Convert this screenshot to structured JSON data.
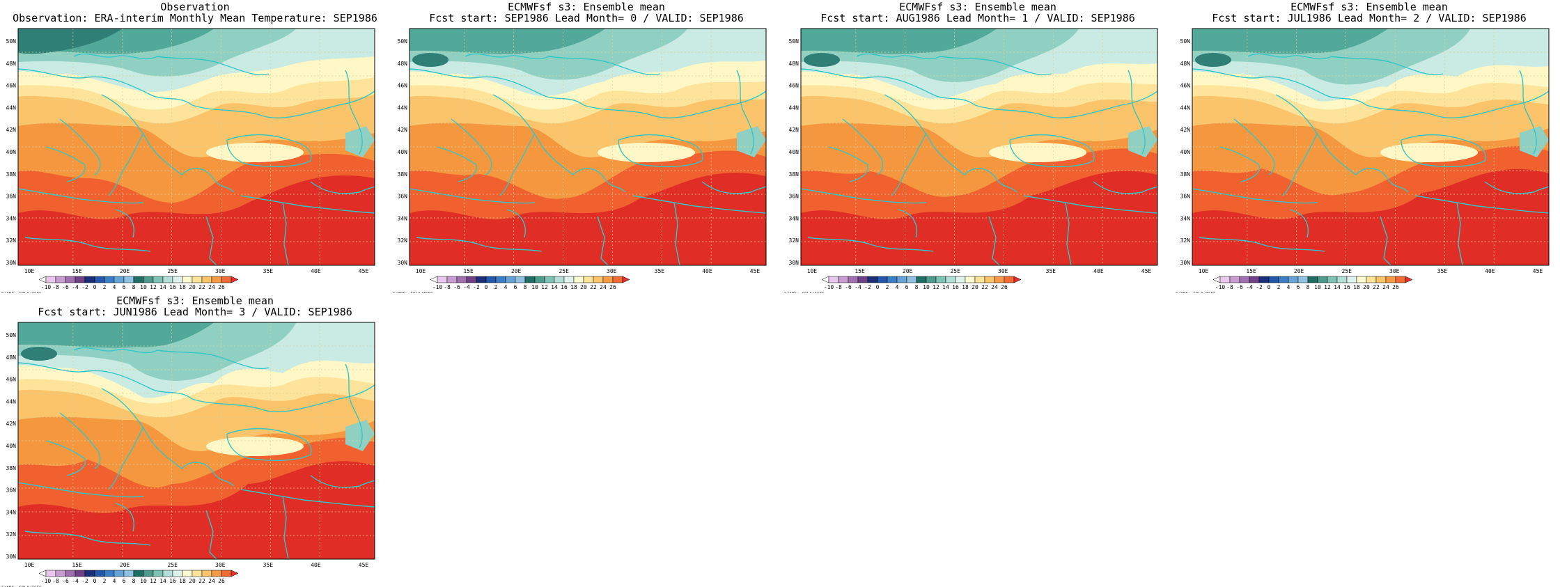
{
  "panels": [
    {
      "title1": "Observation",
      "title2": "Observation: ERA-interim Monthly Mean Temperature: SEP1986",
      "variant": "obs"
    },
    {
      "title1": "ECMWFsf s3: Ensemble mean",
      "title2": "Fcst start: SEP1986  Lead Month= 0 / VALID: SEP1986",
      "variant": "fc0"
    },
    {
      "title1": "ECMWFsf s3: Ensemble mean",
      "title2": "Fcst start: AUG1986  Lead Month= 1 / VALID: SEP1986",
      "variant": "fc1"
    },
    {
      "title1": "ECMWFsf s3: Ensemble mean",
      "title2": "Fcst start: JUL1986  Lead Month= 2 / VALID: SEP1986",
      "variant": "fc2"
    },
    {
      "title1": "ECMWFsf s3: Ensemble mean",
      "title2": "Fcst start: JUN1986  Lead Month= 3 / VALID: SEP1986",
      "variant": "fc3"
    }
  ],
  "lat_ticks": [
    "50N",
    "48N",
    "46N",
    "44N",
    "42N",
    "40N",
    "38N",
    "36N",
    "34N",
    "32N",
    "30N"
  ],
  "lon_ticks": [
    "10E",
    "15E",
    "20E",
    "25E",
    "30E",
    "35E",
    "40E",
    "45E"
  ],
  "colorbar": {
    "labels": [
      "-10",
      "-8",
      "-6",
      "-4",
      "-2",
      "0",
      "2",
      "4",
      "6",
      "8",
      "10",
      "12",
      "14",
      "16",
      "18",
      "20",
      "22",
      "24",
      "26"
    ],
    "colors": [
      "#ffffff",
      "#e9c7ec",
      "#c89bd1",
      "#9f6fb0",
      "#6f3f88",
      "#1b2f78",
      "#2357a8",
      "#3c7ec4",
      "#65a2d6",
      "#8fc1e2",
      "#1f6e66",
      "#4e9a8f",
      "#7dc2b4",
      "#b2ded5",
      "#def2ec",
      "#fffacf",
      "#fde49a",
      "#fbc46a",
      "#f79a48",
      "#f26a35",
      "#e4312a"
    ],
    "credit": "GrADS: COLA/IGES"
  },
  "map_colors": {
    "coast": "#33c6c6",
    "grid": "#d9d29a",
    "darkteal": "#2f7f77",
    "teal": "#52a899",
    "lightteal": "#8fd0c2",
    "paleteal": "#c9ebe3",
    "cream": "#fff7c6",
    "lightyellow": "#fde49a",
    "yellow": "#fbc46a",
    "orange": "#f5973f",
    "redorange": "#f0612f",
    "red": "#e02d26"
  }
}
